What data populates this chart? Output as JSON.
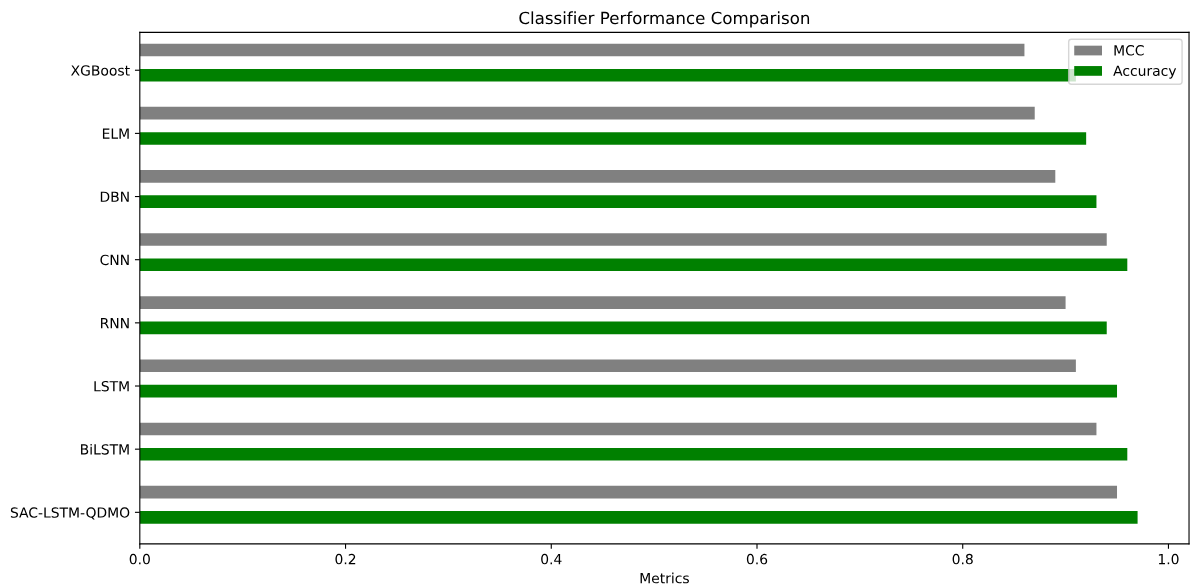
{
  "chart_data": {
    "type": "bar",
    "orientation": "horizontal",
    "title": "Classifier Performance Comparison",
    "xlabel": "Metrics",
    "categories": [
      "XGBoost",
      "ELM",
      "DBN",
      "CNN",
      "RNN",
      "LSTM",
      "BiLSTM",
      "SAC-LSTM-QDMO"
    ],
    "series": [
      {
        "name": "MCC",
        "color": "#808080",
        "values": [
          0.86,
          0.87,
          0.89,
          0.94,
          0.9,
          0.91,
          0.93,
          0.95
        ]
      },
      {
        "name": "Accuracy",
        "color": "#008000",
        "values": [
          0.91,
          0.92,
          0.93,
          0.96,
          0.94,
          0.95,
          0.96,
          0.97
        ]
      }
    ],
    "xlim": [
      0,
      1.02
    ],
    "xticks": [
      {
        "value": 0,
        "label": "0.0"
      },
      0.2,
      0.4,
      0.6,
      0.8,
      {
        "value": 1,
        "label": "1.0"
      }
    ],
    "grid": false,
    "legend": "top right"
  }
}
